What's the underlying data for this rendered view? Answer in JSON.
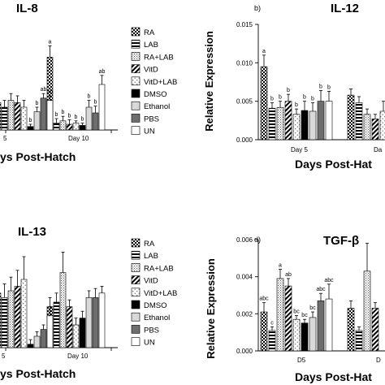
{
  "legend": [
    "RA",
    "LAB",
    "RA+LAB",
    "VitD",
    "VitD+LAB",
    "DMSO",
    "Ethanol",
    "PBS",
    "UN"
  ],
  "chart_data": [
    {
      "id": "il8",
      "type": "bar",
      "title": "IL-8",
      "panel_letter": "",
      "xlabel": "ys Post-Hatch",
      "ylabel": "",
      "categories": [
        "5",
        "Day 10"
      ],
      "ylim": [
        0,
        0.05
      ],
      "series": [
        {
          "name": "RA",
          "values": [
            0.012,
            0.032
          ],
          "err": [
            0.003,
            0.005
          ],
          "sig": [
            "",
            "a"
          ]
        },
        {
          "name": "LAB",
          "values": [
            0.01,
            0.003
          ],
          "err": [
            0.003,
            0.002
          ],
          "sig": [
            "",
            "b"
          ]
        },
        {
          "name": "RA+LAB",
          "values": [
            0.013,
            0.004
          ],
          "err": [
            0.003,
            0.002
          ],
          "sig": [
            "",
            "b"
          ]
        },
        {
          "name": "VitD",
          "values": [
            0.012,
            0.0025
          ],
          "err": [
            0.003,
            0.002
          ],
          "sig": [
            "",
            "b"
          ]
        },
        {
          "name": "VitD+LAB",
          "values": [
            0.01,
            0.003
          ],
          "err": [
            0.003,
            0.001
          ],
          "sig": [
            "",
            "b"
          ]
        },
        {
          "name": "DMSO",
          "values": [
            0.0015,
            0.002
          ],
          "err": [
            0.001,
            0.001
          ],
          "sig": [
            "b",
            "b"
          ]
        },
        {
          "name": "Ethanol",
          "values": [
            0.008,
            0.01
          ],
          "err": [
            0.002,
            0.003
          ],
          "sig": [
            "b",
            "b"
          ]
        },
        {
          "name": "PBS",
          "values": [
            0.014,
            0.0075
          ],
          "err": [
            0.002,
            0.003
          ],
          "sig": [
            "ab",
            "b"
          ]
        },
        {
          "name": "UN",
          "values": [
            0.013,
            0.02
          ],
          "err": [
            0.002,
            0.004
          ],
          "sig": [
            "ab",
            "ab"
          ]
        }
      ]
    },
    {
      "id": "il12",
      "type": "bar",
      "title": "IL-12",
      "panel_letter": "b)",
      "xlabel": "Days Post-Hat",
      "ylabel": "Relative Expression",
      "categories": [
        "Day 5",
        "Da"
      ],
      "yticks": [
        "0.000",
        "0.005",
        "0.010",
        "0.015"
      ],
      "ylim": [
        0,
        0.015
      ],
      "series": [
        {
          "name": "RA",
          "values": [
            0.0095,
            0.0058
          ],
          "err": [
            0.0015,
            0.0008
          ],
          "sig": [
            "a",
            ""
          ]
        },
        {
          "name": "LAB",
          "values": [
            0.0041,
            0.0048
          ],
          "err": [
            0.0007,
            0.0008
          ],
          "sig": [
            "b",
            ""
          ]
        },
        {
          "name": "RA+LAB",
          "values": [
            0.0042,
            0.0033
          ],
          "err": [
            0.0008,
            0.0007
          ],
          "sig": [
            "b",
            ""
          ]
        },
        {
          "name": "VitD",
          "values": [
            0.005,
            0.0027
          ],
          "err": [
            0.0009,
            0.0006
          ],
          "sig": [
            "b",
            ""
          ]
        },
        {
          "name": "VitD+LAB",
          "values": [
            0.0033,
            0.0037
          ],
          "err": [
            0.0007,
            0.0013
          ],
          "sig": [
            "b",
            ""
          ]
        },
        {
          "name": "DMSO",
          "values": [
            0.0038,
            0.0
          ],
          "err": [
            0.0012,
            0.0
          ],
          "sig": [
            "b",
            ""
          ]
        },
        {
          "name": "Ethanol",
          "values": [
            0.0037,
            0.0
          ],
          "err": [
            0.0011,
            0.0
          ],
          "sig": [
            "b",
            ""
          ]
        },
        {
          "name": "PBS",
          "values": [
            0.005,
            0.0
          ],
          "err": [
            0.0014,
            0.0
          ],
          "sig": [
            "b",
            ""
          ]
        },
        {
          "name": "UN",
          "values": [
            0.005,
            0.0
          ],
          "err": [
            0.0013,
            0.0
          ],
          "sig": [
            "b",
            ""
          ]
        }
      ]
    },
    {
      "id": "il13",
      "type": "bar",
      "title": "IL-13",
      "panel_letter": "",
      "xlabel": "ys Post-Hatch",
      "ylabel": "",
      "categories": [
        "5",
        "Day 10"
      ],
      "ylim": [
        0,
        0.05
      ],
      "series": [
        {
          "name": "RA",
          "values": [
            0.024,
            0.018
          ],
          "err": [
            0.006,
            0.004
          ],
          "sig": [
            "",
            ""
          ]
        },
        {
          "name": "LAB",
          "values": [
            0.022,
            0.02
          ],
          "err": [
            0.006,
            0.004
          ],
          "sig": [
            "",
            ""
          ]
        },
        {
          "name": "RA+LAB",
          "values": [
            0.025,
            0.033
          ],
          "err": [
            0.006,
            0.009
          ],
          "sig": [
            "",
            ""
          ]
        },
        {
          "name": "VitD",
          "values": [
            0.027,
            0.018
          ],
          "err": [
            0.007,
            0.003
          ],
          "sig": [
            "",
            ""
          ]
        },
        {
          "name": "VitD+LAB",
          "values": [
            0.03,
            0.01
          ],
          "err": [
            0.01,
            0.003
          ],
          "sig": [
            "",
            ""
          ]
        },
        {
          "name": "DMSO",
          "values": [
            0.0015,
            0.013
          ],
          "err": [
            0.002,
            0.003
          ],
          "sig": [
            "",
            ""
          ]
        },
        {
          "name": "Ethanol",
          "values": [
            0.005,
            0.022
          ],
          "err": [
            0.002,
            0.003
          ],
          "sig": [
            "",
            ""
          ]
        },
        {
          "name": "PBS",
          "values": [
            0.008,
            0.022
          ],
          "err": [
            0.002,
            0.004
          ],
          "sig": [
            "",
            ""
          ]
        },
        {
          "name": "UN",
          "values": [
            0.014,
            0.024
          ],
          "err": [
            0.004,
            0.003
          ],
          "sig": [
            "",
            ""
          ]
        }
      ]
    },
    {
      "id": "tgfb",
      "type": "bar",
      "title": "TGF-β",
      "panel_letter": "d)",
      "xlabel": "Days Post-Hat",
      "ylabel": "Relative Expression",
      "categories": [
        "D5",
        "D"
      ],
      "yticks": [
        "0.000",
        "0.002",
        "0.004",
        "0.006"
      ],
      "ylim": [
        0,
        0.006
      ],
      "series": [
        {
          "name": "RA",
          "values": [
            0.0021,
            0.0023
          ],
          "err": [
            0.0005,
            0.0004
          ],
          "sig": [
            "abc",
            ""
          ]
        },
        {
          "name": "LAB",
          "values": [
            0.0011,
            0.0011
          ],
          "err": [
            0.0002,
            0.0002
          ],
          "sig": [
            "c",
            ""
          ]
        },
        {
          "name": "RA+LAB",
          "values": [
            0.0039,
            0.0043
          ],
          "err": [
            0.0005,
            0.0015
          ],
          "sig": [
            "a",
            ""
          ]
        },
        {
          "name": "VitD",
          "values": [
            0.0035,
            0.0023
          ],
          "err": [
            0.0004,
            0.0003
          ],
          "sig": [
            "ab",
            ""
          ]
        },
        {
          "name": "VitD+LAB",
          "values": [
            0.0017,
            0.0
          ],
          "err": [
            0.0002,
            0.0
          ],
          "sig": [
            "bc",
            ""
          ]
        },
        {
          "name": "DMSO",
          "values": [
            0.0015,
            0.0
          ],
          "err": [
            0.0002,
            0.0
          ],
          "sig": [
            "bc",
            ""
          ]
        },
        {
          "name": "Ethanol",
          "values": [
            0.0018,
            0.0
          ],
          "err": [
            0.0003,
            0.0
          ],
          "sig": [
            "bc",
            ""
          ]
        },
        {
          "name": "PBS",
          "values": [
            0.0027,
            0.0
          ],
          "err": [
            0.0004,
            0.0
          ],
          "sig": [
            "abc",
            ""
          ]
        },
        {
          "name": "UN",
          "values": [
            0.0028,
            0.0
          ],
          "err": [
            0.0008,
            0.0
          ],
          "sig": [
            "abc",
            ""
          ]
        }
      ]
    }
  ]
}
